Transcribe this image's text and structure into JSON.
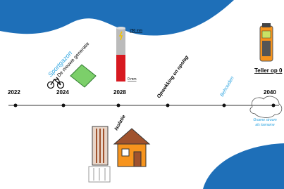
{
  "timeline": {
    "years": [
      "2022",
      "2024",
      "2028",
      "2040"
    ]
  },
  "labels": {
    "sport": "Sportgazon",
    "generation": "De nieuwe generatie",
    "gauge_top": "280 mm",
    "gauge_bottom": "0 mm",
    "generation_storage": "Opwekking en opslag",
    "keep": "Behouden",
    "meter": "Teller op 0",
    "green_power": [
      "Groene stroom",
      "als toename"
    ],
    "insulation": "Isolatie"
  }
}
